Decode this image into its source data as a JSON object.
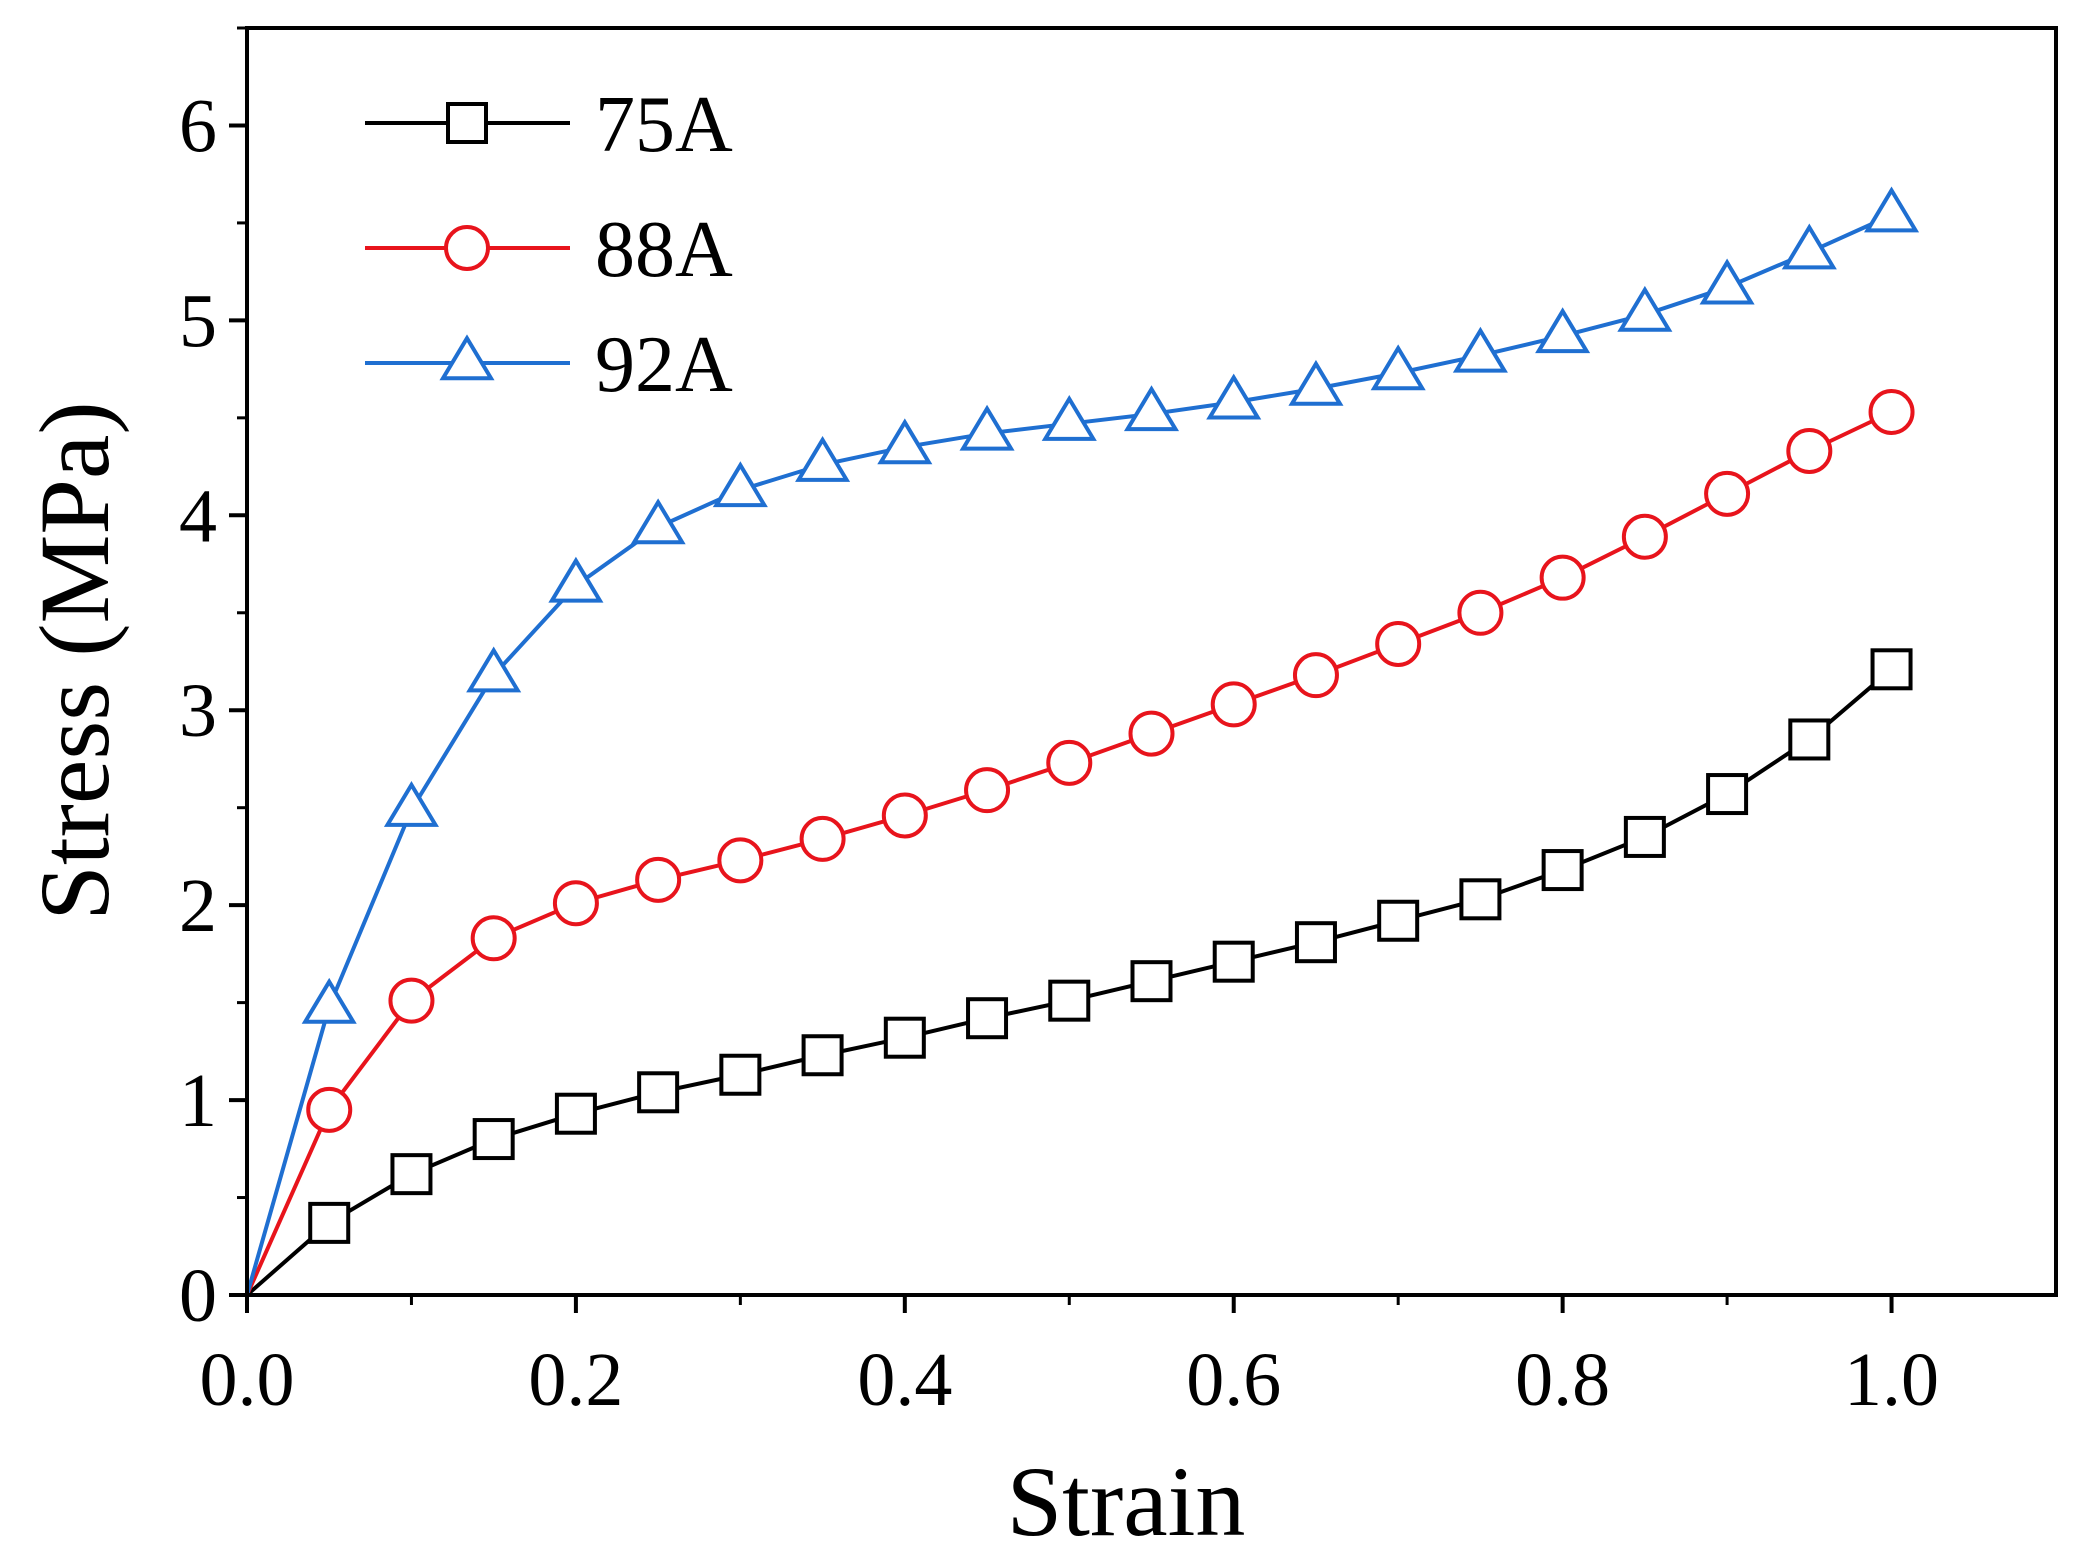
{
  "chart_data": {
    "type": "line",
    "title": "",
    "xlabel": "Strain",
    "ylabel": "Stress (MPa)",
    "xlim": [
      0.0,
      1.1
    ],
    "ylim": [
      0,
      6.5
    ],
    "xticks": [
      0.0,
      0.2,
      0.4,
      0.6,
      0.8,
      1.0
    ],
    "xtick_labels": [
      "0.0",
      "0.2",
      "0.4",
      "0.6",
      "0.8",
      "1.0"
    ],
    "yticks": [
      0,
      1,
      2,
      3,
      4,
      5,
      6
    ],
    "ytick_labels": [
      "0",
      "1",
      "2",
      "3",
      "4",
      "5",
      "6"
    ],
    "grid": false,
    "legend_position": "top-left",
    "x": [
      0.0,
      0.05,
      0.1,
      0.15,
      0.2,
      0.25,
      0.3,
      0.35,
      0.4,
      0.45,
      0.5,
      0.55,
      0.6,
      0.65,
      0.7,
      0.75,
      0.8,
      0.85,
      0.9,
      0.95,
      1.0
    ],
    "series": [
      {
        "name": "75A",
        "color": "#000000",
        "marker": "square",
        "values": [
          0.0,
          0.37,
          0.62,
          0.8,
          0.93,
          1.04,
          1.13,
          1.23,
          1.32,
          1.42,
          1.51,
          1.61,
          1.71,
          1.81,
          1.92,
          2.03,
          2.18,
          2.35,
          2.57,
          2.85,
          3.21
        ]
      },
      {
        "name": "88A",
        "color": "#e8141c",
        "marker": "circle",
        "values": [
          0.0,
          0.95,
          1.51,
          1.83,
          2.01,
          2.13,
          2.23,
          2.34,
          2.46,
          2.59,
          2.73,
          2.88,
          3.03,
          3.18,
          3.34,
          3.5,
          3.68,
          3.89,
          4.11,
          4.33,
          4.53
        ]
      },
      {
        "name": "92A",
        "color": "#1f6fd1",
        "marker": "triangle",
        "values": [
          0.0,
          1.48,
          2.49,
          3.18,
          3.64,
          3.94,
          4.13,
          4.26,
          4.35,
          4.42,
          4.47,
          4.52,
          4.58,
          4.65,
          4.73,
          4.82,
          4.92,
          5.03,
          5.17,
          5.35,
          5.54
        ]
      }
    ]
  }
}
